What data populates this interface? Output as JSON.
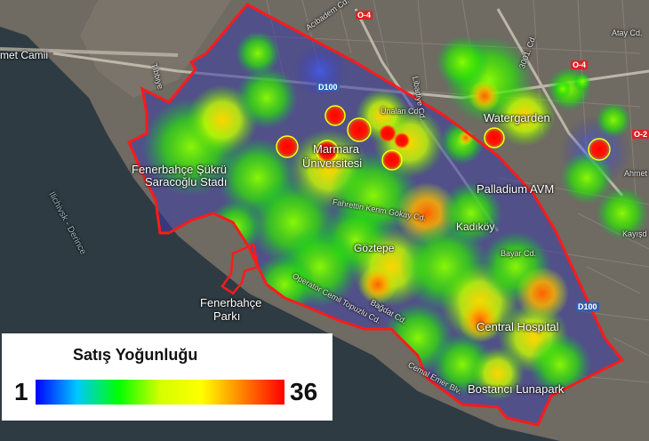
{
  "map": {
    "labels": {
      "camii": "met Camii",
      "fenerbahce_stadium_1": "Fenerbahçe Şükrü",
      "fenerbahce_stadium_2": "Saracoğlu Stadı",
      "marmara_1": "Marmara",
      "marmara_2": "Üniversitesi",
      "palladium": "Palladium AVM",
      "watergarden": "Watergarden",
      "fenerbahce_park_1": "Fenerbahçe",
      "fenerbahce_park_2": "Parkı",
      "kadikoy": "Kadıköy",
      "goztepe": "Göztepe",
      "central_hospital": "Central Hospital",
      "bostanci_lunapark": "Bostancı Lunapark",
      "sea_label": "Ilichivsk - Derince",
      "bayar_cd": "Bayar Cd.",
      "unalan_cd": "Ünalan Cd.",
      "libadiye_cd": "Libadiye Cd.",
      "cemil_topuzlu_cd": "Operatör Cemil Topuzlu Cd.",
      "bagdat_cd": "Bağdat Cd.",
      "fahrettin_cd": "Fahrettin Kerim Gökay Cd.",
      "cemal_emer_cd": "Cemal Emer Blv.",
      "kayisdagi": "Kayışd",
      "ahmet": "Ahmet",
      "atay_cd": "Atay Cd.",
      "tibbiye": "Tıbbiye",
      "acibadem": "Acıbadem Cd.",
      "3001_cd": "3001. Cd."
    },
    "shields": {
      "d100_a": "D100",
      "d100_b": "D100",
      "o4_a": "O-4",
      "o4_b": "O-4",
      "o2": "O-2"
    },
    "colors": {
      "boundary": "#ff1a1a",
      "sea": "#2f3b42"
    }
  },
  "legend": {
    "title": "Satış Yoğunluğu",
    "min": "1",
    "max": "36",
    "gradient": [
      "#0000ff",
      "#00c8ff",
      "#00ff00",
      "#d4ff00",
      "#ffff00",
      "#ff8000",
      "#ff0000"
    ]
  }
}
